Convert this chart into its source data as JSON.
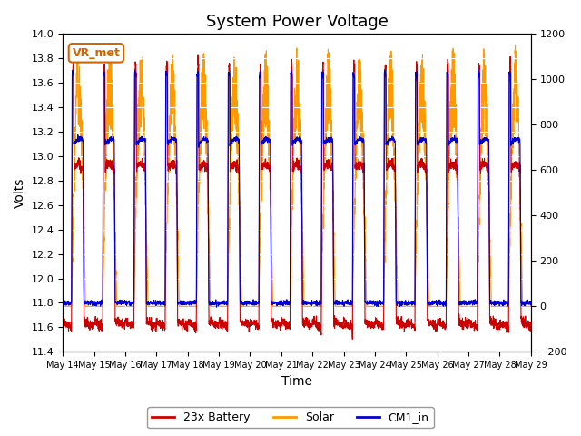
{
  "title": "System Power Voltage",
  "xlabel": "Time",
  "ylabel": "Volts",
  "ylim_left": [
    11.4,
    14.0
  ],
  "ylim_right": [
    -200,
    1200
  ],
  "yticks_left": [
    11.4,
    11.6,
    11.8,
    12.0,
    12.2,
    12.4,
    12.6,
    12.8,
    13.0,
    13.2,
    13.4,
    13.6,
    13.8,
    14.0
  ],
  "yticks_right": [
    -200,
    0,
    200,
    400,
    600,
    800,
    1000,
    1200
  ],
  "xtick_labels": [
    "May 14",
    "May 15",
    "May 16",
    "May 17",
    "May 18",
    "May 19",
    "May 20",
    "May 21",
    "May 22",
    "May 23",
    "May 24",
    "May 25",
    "May 26",
    "May 27",
    "May 28",
    "May 29"
  ],
  "num_days": 15,
  "color_battery": "#CC0000",
  "color_solar": "#FF9900",
  "color_cm1": "#0000CC",
  "legend_labels": [
    "23x Battery",
    "Solar",
    "CM1_in"
  ],
  "annotation_text": "VR_met",
  "annotation_color": "#CC6600",
  "background_color": "#E8E8E8",
  "grid_color": "#FFFFFF",
  "title_fontsize": 13
}
